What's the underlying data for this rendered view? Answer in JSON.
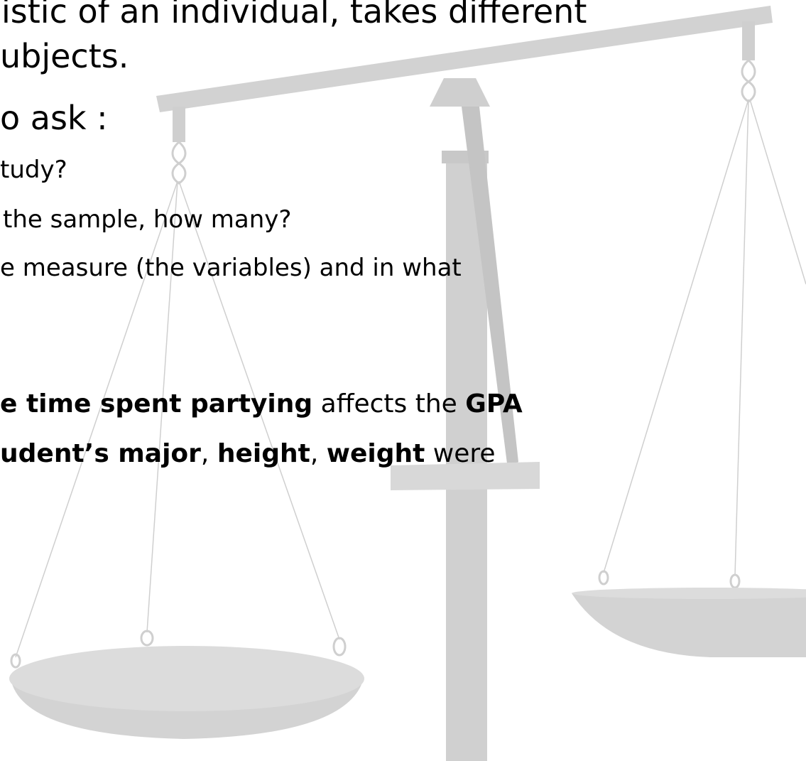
{
  "lines": [
    [
      {
        "text": "istic of an individual, takes different",
        "bold": false
      }
    ],
    [
      {
        "text": "ubjects.",
        "bold": false
      }
    ],
    [
      {
        "text": "o ask :",
        "bold": false
      }
    ],
    [
      {
        "text": "tudy?",
        "bold": false
      }
    ],
    [
      {
        "text": "the sample, how many?",
        "bold": false
      }
    ],
    [
      {
        "text": "e measure (the variables) and in what",
        "bold": false
      }
    ],
    [
      {
        "text": "e time spent partying",
        "bold": true
      },
      {
        "text": " affects the ",
        "bold": false
      },
      {
        "text": "GPA",
        "bold": true
      }
    ],
    [
      {
        "text": "udent’s major",
        "bold": true
      },
      {
        "text": ", ",
        "bold": false
      },
      {
        "text": "height",
        "bold": true
      },
      {
        "text": ", ",
        "bold": false
      },
      {
        "text": "weight",
        "bold": true
      },
      {
        "text": " were",
        "bold": false
      }
    ]
  ]
}
